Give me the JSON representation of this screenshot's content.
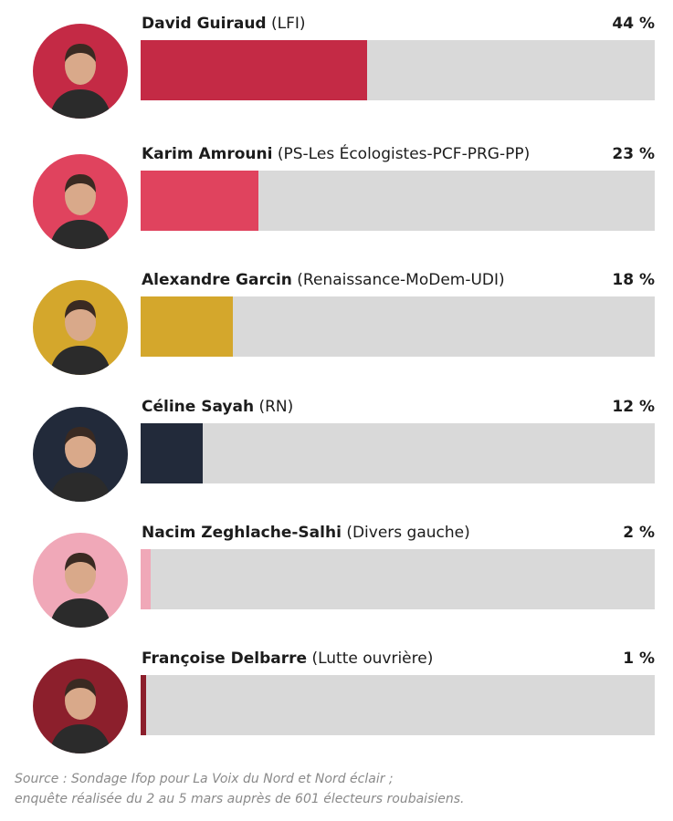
{
  "chart_data": {
    "type": "bar",
    "orientation": "horizontal",
    "xlim": [
      0,
      100
    ],
    "series": [
      {
        "values": [
          44,
          23,
          18,
          12,
          2,
          1
        ]
      }
    ],
    "candidates": [
      {
        "name": "David Guiraud",
        "party": "(LFI)",
        "value": 44,
        "value_label": "44 %",
        "color": "#c42a45"
      },
      {
        "name": "Karim Amrouni",
        "party": "(PS-Les Écologistes-PCF-PRG-PP)",
        "value": 23,
        "value_label": "23 %",
        "color": "#e0435e"
      },
      {
        "name": "Alexandre Garcin",
        "party": "(Renaissance-MoDem-UDI)",
        "value": 18,
        "value_label": "18 %",
        "color": "#d4a72c"
      },
      {
        "name": "Céline Sayah",
        "party": "(RN)",
        "value": 12,
        "value_label": "12 %",
        "color": "#222a3a"
      },
      {
        "name": "Nacim Zeghlache-Salhi",
        "party": "(Divers gauche)",
        "value": 2,
        "value_label": "2 %",
        "color": "#f0a8b8"
      },
      {
        "name": "Françoise Delbarre",
        "party": "(Lutte ouvrière)",
        "value": 1,
        "value_label": "1 %",
        "color": "#8c1f2c"
      }
    ],
    "avatar_bg_colors": [
      "#c42a45",
      "#e0435e",
      "#d4a72c",
      "#222a3a",
      "#f0a8b8",
      "#8c1f2c"
    ],
    "track_color": "#d9d9d9"
  },
  "source": {
    "line1": "Source : Sondage Ifop pour La Voix du Nord et Nord éclair ;",
    "line2": "enquête réalisée du 2 au 5 mars auprès de 601 électeurs roubaisiens."
  }
}
